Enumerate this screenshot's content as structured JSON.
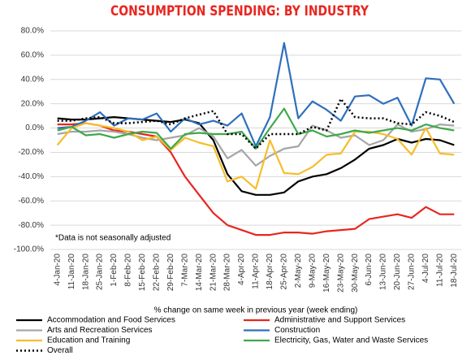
{
  "chart_data": {
    "type": "line",
    "title": "CONSUMPTION SPENDING: BY INDUSTRY",
    "annotation": "*Data is not seasonally adjusted",
    "x_label": "% change on same week in previous year (week ending)",
    "categories": [
      "4-Jan-20",
      "11-Jan-20",
      "18-Jan-20",
      "25-Jan-20",
      "1-Feb-20",
      "8-Feb-20",
      "15-Feb-20",
      "22-Feb-20",
      "29-Feb-20",
      "7-Mar-20",
      "14-Mar-20",
      "21-Mar-20",
      "28-Mar-20",
      "4-Apr-20",
      "11-Apr-20",
      "18-Apr-20",
      "25-Apr-20",
      "2-May-20",
      "9-May-20",
      "16-May-20",
      "23-May-20",
      "30-May-20",
      "6-Jun-20",
      "13-Jun-20",
      "20-Jun-20",
      "27-Jun-20",
      "4-Jul-20",
      "11-Jul-20",
      "18-Jul-20"
    ],
    "series": [
      {
        "name": "Accommodation and Food Services",
        "color": "#000000",
        "values": [
          8,
          7,
          7,
          8,
          9,
          8,
          7,
          6,
          5,
          7,
          4,
          -10,
          -38,
          -52,
          -55,
          -55,
          -53,
          -44,
          -40,
          -38,
          -33,
          -26,
          -17,
          -14,
          -9,
          -12,
          -9,
          -10,
          -14
        ]
      },
      {
        "name": "Administrative and Support Services",
        "color": "#e8261f",
        "values": [
          3,
          3,
          4,
          2,
          -2,
          -3,
          -5,
          -7,
          -20,
          -40,
          -55,
          -70,
          -80,
          -84,
          -88,
          -88,
          -86,
          -86,
          -87,
          -85,
          -84,
          -83,
          -75,
          -73,
          -71,
          -74,
          -65,
          -71,
          -71
        ]
      },
      {
        "name": "Arts and Recreation Services",
        "color": "#a6a6a6",
        "values": [
          -5,
          -3,
          -3,
          -2,
          -3,
          -5,
          -8,
          -10,
          -8,
          -6,
          0,
          -7,
          -25,
          -18,
          -31,
          -23,
          -17,
          -15,
          2,
          -2,
          -8,
          -6,
          -14,
          -10,
          3,
          -3,
          -1,
          3,
          2
        ]
      },
      {
        "name": "Construction",
        "color": "#2e6fbd",
        "values": [
          0,
          1,
          6,
          13,
          2,
          8,
          7,
          12,
          -3,
          8,
          3,
          6,
          2,
          12,
          -15,
          9,
          70,
          8,
          22,
          15,
          6,
          26,
          27,
          20,
          25,
          2,
          41,
          40,
          20
        ]
      },
      {
        "name": "Education and Training",
        "color": "#f7bd2a",
        "values": [
          -14,
          0,
          4,
          2,
          0,
          -3,
          -10,
          -7,
          -18,
          -8,
          -12,
          -15,
          -44,
          -40,
          -50,
          -10,
          -37,
          -38,
          -32,
          -22,
          -21,
          -3,
          -3,
          -5,
          -9,
          -22,
          0,
          -21,
          -22
        ]
      },
      {
        "name": "Electricity, Gas, Water and Waste Services",
        "color": "#3fa94a",
        "values": [
          -2,
          1,
          -6,
          -5,
          -8,
          -5,
          -3,
          -4,
          -17,
          -5,
          -4,
          -5,
          -5,
          -3,
          -17,
          0,
          16,
          -5,
          -2,
          -7,
          -5,
          -2,
          -4,
          -2,
          0,
          -2,
          3,
          0,
          -2
        ]
      },
      {
        "name": "Overall",
        "color": "#000000",
        "dash": "dotted",
        "values": [
          6,
          6,
          8,
          9,
          4,
          4,
          5,
          6,
          3,
          8,
          11,
          14,
          -5,
          -5,
          -17,
          -5,
          -5,
          -5,
          1,
          -2,
          24,
          9,
          8,
          8,
          4,
          3,
          13,
          10,
          5
        ]
      }
    ],
    "ylim": [
      -100,
      80
    ],
    "yticks": [
      {
        "value": 80,
        "label": "80.0%"
      },
      {
        "value": 60,
        "label": "60.0%"
      },
      {
        "value": 40,
        "label": "40.0%"
      },
      {
        "value": 20,
        "label": "20.0%"
      },
      {
        "value": 0,
        "label": "0.0%"
      },
      {
        "value": -20,
        "label": "-20.0%"
      },
      {
        "value": -40,
        "label": "-40.0%"
      },
      {
        "value": -60,
        "label": "-60.0%"
      },
      {
        "value": -80,
        "label": "-80.0%"
      },
      {
        "value": -100,
        "label": "-100.0%"
      }
    ],
    "grid": true,
    "legend": "bottom"
  }
}
